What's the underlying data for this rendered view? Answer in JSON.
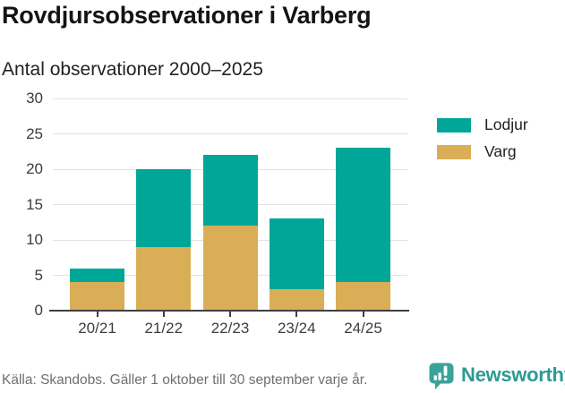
{
  "chart_data": {
    "type": "bar",
    "stacked": true,
    "title": "Rovdjursobservationer i Varberg",
    "subtitle": "Antal observationer 2000–2025",
    "categories": [
      "20/21",
      "21/22",
      "22/23",
      "23/24",
      "24/25"
    ],
    "series": [
      {
        "name": "Varg",
        "color": "#d9ae57",
        "values": [
          4,
          9,
          12,
          3,
          4
        ]
      },
      {
        "name": "Lodjur",
        "color": "#00a698",
        "values": [
          2,
          11,
          10,
          10,
          19
        ]
      }
    ],
    "totals": [
      6,
      20,
      22,
      13,
      23
    ],
    "xlabel": "",
    "ylabel": "",
    "ylim": [
      0,
      30
    ],
    "yticks": [
      0,
      5,
      10,
      15,
      20,
      25,
      30
    ],
    "grid": true,
    "legend_position": "right"
  },
  "legend": {
    "items": [
      {
        "label": "Lodjur",
        "color": "#00a698"
      },
      {
        "label": "Varg",
        "color": "#d9ae57"
      }
    ]
  },
  "footer": {
    "source": "Källa: Skandobs. Gäller 1 oktober till 30 september varje år.",
    "brand": "Newsworthy",
    "logo_icon": "newsworthy-speech-bubble-chart-icon",
    "brand_color": "#2d9a92",
    "icon_color": "#3ba29a"
  }
}
